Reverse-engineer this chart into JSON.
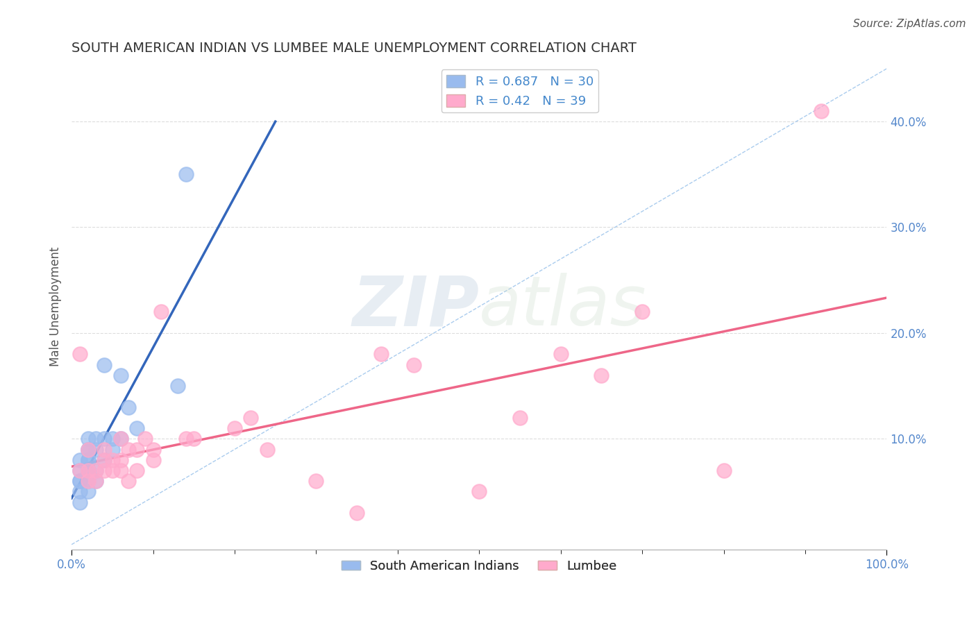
{
  "title": "SOUTH AMERICAN INDIAN VS LUMBEE MALE UNEMPLOYMENT CORRELATION CHART",
  "source": "Source: ZipAtlas.com",
  "ylabel": "Male Unemployment",
  "legend_labels": [
    "South American Indians",
    "Lumbee"
  ],
  "blue_R": 0.687,
  "blue_N": 30,
  "pink_R": 0.42,
  "pink_N": 39,
  "blue_color": "#99BBEE",
  "pink_color": "#FFAACC",
  "blue_line_color": "#3366BB",
  "pink_line_color": "#EE6688",
  "diag_line_color": "#AACCEE",
  "xlim": [
    0.0,
    1.0
  ],
  "ylim": [
    -0.005,
    0.455
  ],
  "xtick_positions": [
    0.0,
    1.0
  ],
  "xtick_minor": [
    0.1,
    0.2,
    0.3,
    0.4,
    0.5,
    0.6,
    0.7,
    0.8,
    0.9
  ],
  "ytick_positions": [
    0.1,
    0.2,
    0.3,
    0.4
  ],
  "blue_scatter_x": [
    0.01,
    0.01,
    0.01,
    0.01,
    0.01,
    0.01,
    0.02,
    0.02,
    0.02,
    0.02,
    0.02,
    0.02,
    0.02,
    0.02,
    0.02,
    0.03,
    0.03,
    0.03,
    0.03,
    0.04,
    0.04,
    0.04,
    0.05,
    0.05,
    0.06,
    0.06,
    0.07,
    0.08,
    0.13,
    0.14
  ],
  "blue_scatter_y": [
    0.04,
    0.05,
    0.06,
    0.06,
    0.07,
    0.08,
    0.05,
    0.06,
    0.07,
    0.07,
    0.08,
    0.08,
    0.09,
    0.09,
    0.1,
    0.06,
    0.07,
    0.09,
    0.1,
    0.08,
    0.1,
    0.17,
    0.09,
    0.1,
    0.1,
    0.16,
    0.13,
    0.11,
    0.15,
    0.35
  ],
  "pink_scatter_x": [
    0.01,
    0.01,
    0.02,
    0.02,
    0.02,
    0.03,
    0.03,
    0.04,
    0.04,
    0.04,
    0.05,
    0.05,
    0.06,
    0.06,
    0.06,
    0.07,
    0.07,
    0.08,
    0.08,
    0.09,
    0.1,
    0.1,
    0.11,
    0.14,
    0.15,
    0.2,
    0.22,
    0.24,
    0.3,
    0.35,
    0.38,
    0.42,
    0.5,
    0.55,
    0.6,
    0.65,
    0.7,
    0.8,
    0.92
  ],
  "pink_scatter_y": [
    0.07,
    0.18,
    0.06,
    0.07,
    0.09,
    0.06,
    0.07,
    0.07,
    0.08,
    0.09,
    0.07,
    0.08,
    0.07,
    0.08,
    0.1,
    0.06,
    0.09,
    0.07,
    0.09,
    0.1,
    0.08,
    0.09,
    0.22,
    0.1,
    0.1,
    0.11,
    0.12,
    0.09,
    0.06,
    0.03,
    0.18,
    0.17,
    0.05,
    0.12,
    0.18,
    0.16,
    0.22,
    0.07,
    0.41
  ],
  "watermark_zip": "ZIP",
  "watermark_atlas": "atlas",
  "title_fontsize": 14,
  "label_fontsize": 12,
  "tick_fontsize": 12,
  "legend_fontsize": 13,
  "source_fontsize": 11,
  "background_color": "#FFFFFF",
  "grid_color": "#DDDDDD",
  "ytick_color": "#5588CC",
  "xtick_color": "#5588CC"
}
